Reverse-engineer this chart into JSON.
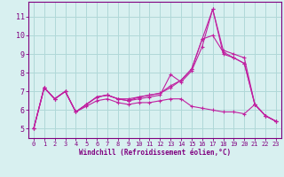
{
  "xlabel": "Windchill (Refroidissement éolien,°C)",
  "x_hours": [
    0,
    1,
    2,
    3,
    4,
    5,
    6,
    7,
    8,
    9,
    10,
    11,
    12,
    13,
    14,
    15,
    16,
    17,
    18,
    19,
    20,
    21,
    22,
    23
  ],
  "line1": [
    5.0,
    7.2,
    6.6,
    7.0,
    5.9,
    6.3,
    6.7,
    6.8,
    6.6,
    6.5,
    6.6,
    6.7,
    6.8,
    7.9,
    7.5,
    8.1,
    9.4,
    11.4,
    9.0,
    8.8,
    8.5,
    6.3,
    5.7,
    5.4
  ],
  "line2": [
    5.0,
    7.2,
    6.6,
    7.0,
    5.9,
    6.3,
    6.7,
    6.8,
    6.6,
    6.5,
    6.7,
    6.8,
    6.9,
    7.3,
    7.6,
    8.2,
    9.8,
    11.4,
    9.2,
    9.0,
    8.8,
    6.3,
    5.7,
    5.4
  ],
  "line3": [
    5.0,
    7.2,
    6.6,
    7.0,
    5.9,
    6.3,
    6.7,
    6.8,
    6.6,
    6.6,
    6.7,
    6.8,
    6.9,
    7.2,
    7.6,
    8.2,
    9.8,
    10.0,
    9.1,
    8.8,
    8.5,
    6.3,
    5.7,
    5.4
  ],
  "line4": [
    5.0,
    7.2,
    6.6,
    7.0,
    5.9,
    6.2,
    6.5,
    6.6,
    6.4,
    6.3,
    6.4,
    6.4,
    6.5,
    6.6,
    6.6,
    6.2,
    6.1,
    6.0,
    5.9,
    5.9,
    5.8,
    6.3,
    5.7,
    5.4
  ],
  "line_color": "#c020a0",
  "bg_color": "#d8f0f0",
  "grid_color": "#b0d8d8",
  "axis_color": "#800080",
  "ylim": [
    4.5,
    11.8
  ],
  "yticks": [
    5,
    6,
    7,
    8,
    9,
    10,
    11
  ],
  "xlim": [
    -0.5,
    23.5
  ],
  "xticks": [
    0,
    1,
    2,
    3,
    4,
    5,
    6,
    7,
    8,
    9,
    10,
    11,
    12,
    13,
    14,
    15,
    16,
    17,
    18,
    19,
    20,
    21,
    22,
    23
  ],
  "marker": "+",
  "markersize": 3,
  "linewidth": 0.8
}
